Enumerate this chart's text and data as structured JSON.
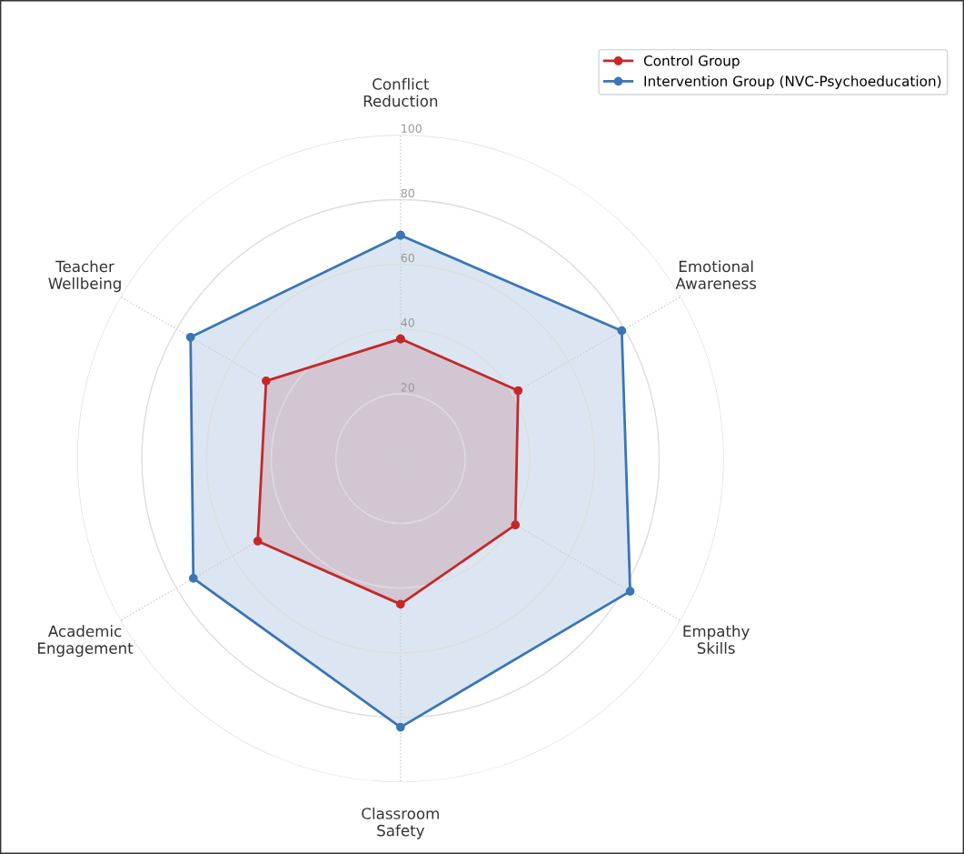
{
  "chart_data": {
    "type": "radar",
    "categories": [
      "Conflict\nReduction",
      "Emotional\nAwareness",
      "Empathy\nSkills",
      "Classroom\nSafety",
      "Academic\nEngagement",
      "Teacher\nWellbeing"
    ],
    "series": [
      {
        "name": "Control Group",
        "color": "#c62828",
        "values": [
          37,
          42,
          41,
          45,
          51,
          48
        ]
      },
      {
        "name": "Intervention Group (NVC-Psychoeducation)",
        "color": "#3a75b8",
        "values": [
          69,
          79,
          82,
          83,
          74,
          75
        ]
      }
    ],
    "ylim": [
      0,
      100
    ],
    "yticks": [
      20,
      40,
      60,
      80,
      100
    ],
    "grid": true,
    "legend": "top right",
    "marker": "circle",
    "line_style": "solid"
  }
}
